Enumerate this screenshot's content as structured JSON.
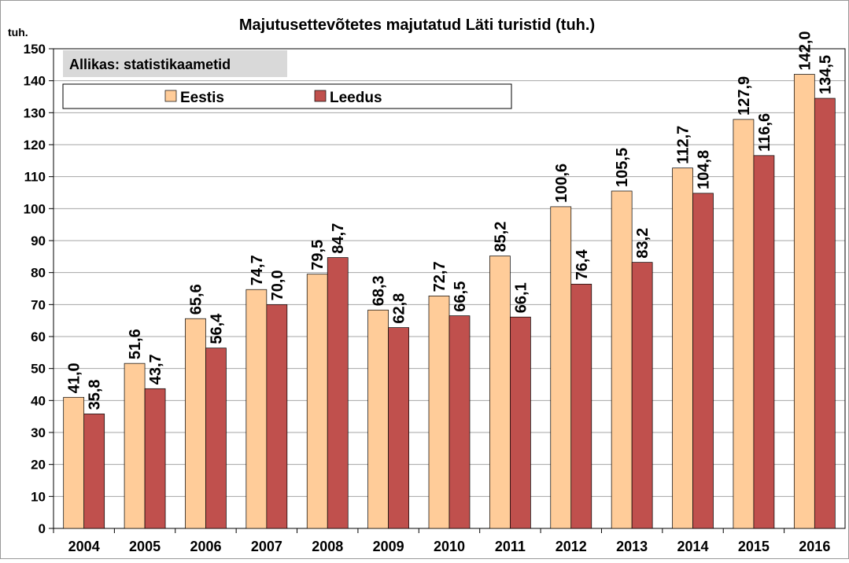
{
  "chart_data": {
    "type": "bar",
    "title": "Majutusettevõtetes majutatud Läti turistid (tuh.)",
    "y_label": "tuh.",
    "annotation": "Allikas: statistikaametid",
    "categories": [
      "2004",
      "2005",
      "2006",
      "2007",
      "2008",
      "2009",
      "2010",
      "2011",
      "2012",
      "2013",
      "2014",
      "2015",
      "2016"
    ],
    "series": [
      {
        "name": "Eestis",
        "color": "#FFCC99",
        "values": [
          41.0,
          51.6,
          65.6,
          74.7,
          79.5,
          68.3,
          72.7,
          85.2,
          100.6,
          105.5,
          112.7,
          127.9,
          142.0
        ],
        "value_labels": [
          "41,0",
          "51,6",
          "65,6",
          "74,7",
          "79,5",
          "68,3",
          "72,7",
          "85,2",
          "100,6",
          "105,5",
          "112,7",
          "127,9",
          "142,0"
        ]
      },
      {
        "name": "Leedus",
        "color": "#C0504D",
        "values": [
          35.8,
          43.7,
          56.4,
          70.0,
          84.7,
          62.8,
          66.5,
          66.1,
          76.4,
          83.2,
          104.8,
          116.6,
          134.5
        ],
        "value_labels": [
          "35,8",
          "43,7",
          "56,4",
          "70,0",
          "84,7",
          "62,8",
          "66,5",
          "66,1",
          "76,4",
          "83,2",
          "104,8",
          "116,6",
          "134,5"
        ]
      }
    ],
    "ylim": [
      0,
      150
    ],
    "yticks": [
      0,
      10,
      20,
      30,
      40,
      50,
      60,
      70,
      80,
      90,
      100,
      110,
      120,
      130,
      140,
      150
    ],
    "grid": true,
    "legend": "top"
  }
}
